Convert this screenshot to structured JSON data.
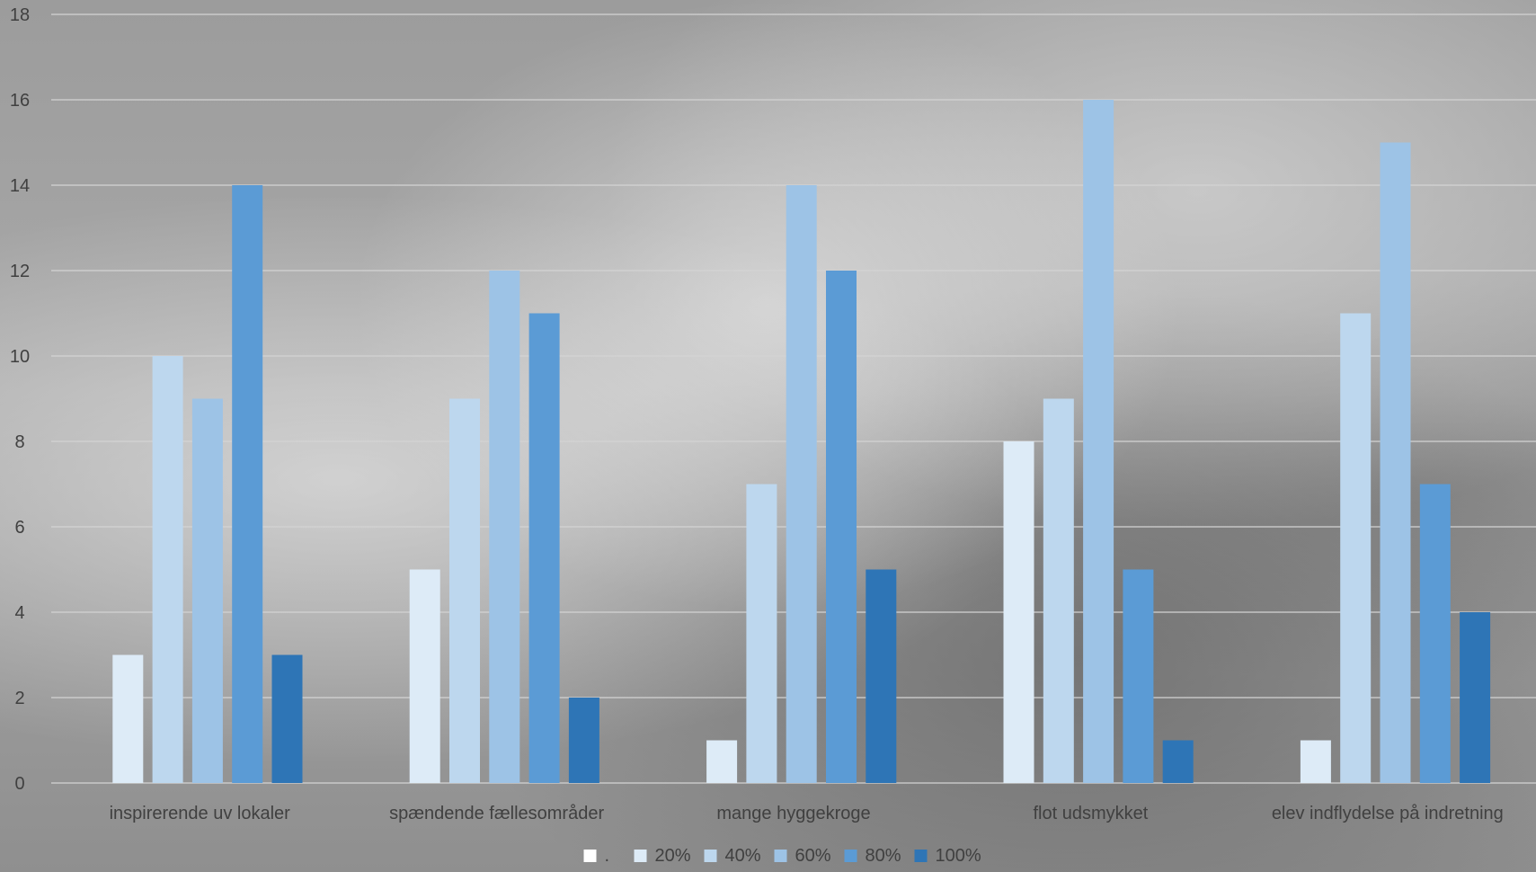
{
  "chart_data": {
    "type": "bar",
    "title": "",
    "xlabel": "",
    "ylabel": "",
    "ylim": [
      0,
      18
    ],
    "yticks": [
      0,
      2,
      4,
      6,
      8,
      10,
      12,
      14,
      16,
      18
    ],
    "grid": true,
    "legend_position": "bottom",
    "categories": [
      "inspirerende uv lokaler",
      "spændende fællesområder",
      "mange hyggekroge",
      "flot udsmykket",
      "elev indflydelse på indretning"
    ],
    "series": [
      {
        "name": ".",
        "color": "#ffffff",
        "values": [
          0,
          0,
          0,
          0,
          0
        ]
      },
      {
        "name": "20%",
        "color": "#ddebf7",
        "values": [
          3,
          5,
          1,
          8,
          1
        ]
      },
      {
        "name": "40%",
        "color": "#bdd7ee",
        "values": [
          10,
          9,
          7,
          9,
          11
        ]
      },
      {
        "name": "60%",
        "color": "#9dc3e6",
        "values": [
          9,
          12,
          14,
          16,
          15
        ]
      },
      {
        "name": "80%",
        "color": "#5b9bd5",
        "values": [
          14,
          11,
          12,
          5,
          7
        ]
      },
      {
        "name": "100%",
        "color": "#2e75b6",
        "values": [
          3,
          2,
          5,
          1,
          4
        ]
      }
    ]
  }
}
